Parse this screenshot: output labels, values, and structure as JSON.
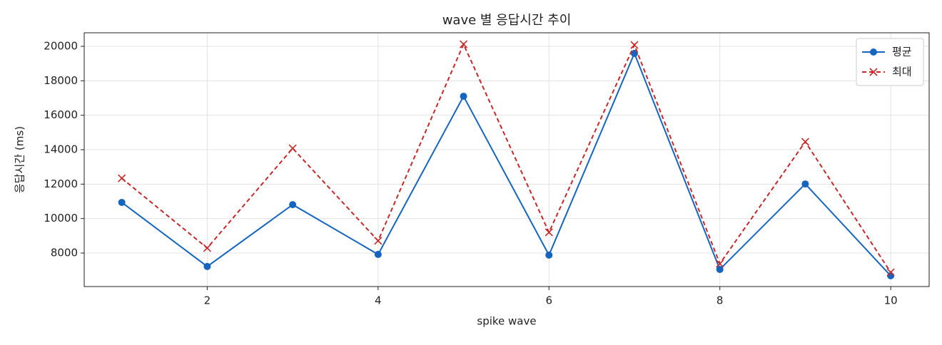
{
  "chart_data": {
    "type": "line",
    "title": "wave 별 응답시간 추이",
    "x_label": "spike wave",
    "y_label": "응답시간 (ms)",
    "x": [
      1,
      2,
      3,
      4,
      5,
      6,
      7,
      8,
      9,
      10
    ],
    "series": [
      {
        "name": "평균",
        "color": "#1565c0",
        "marker": "circle",
        "dashed": false,
        "values": [
          10940,
          7220,
          10810,
          7920,
          17100,
          7880,
          19590,
          7050,
          12010,
          6680
        ]
      },
      {
        "name": "최대",
        "color": "#c62828",
        "marker": "x",
        "dashed": true,
        "values": [
          12340,
          8290,
          14080,
          8710,
          20120,
          9200,
          20080,
          7380,
          14460,
          6880
        ]
      }
    ],
    "xlim": [
      0.56,
      10.45
    ],
    "ylim": [
      6055,
      20786
    ],
    "xticks": [
      2,
      4,
      6,
      8,
      10
    ],
    "yticks": [
      8000,
      10000,
      12000,
      14000,
      16000,
      18000,
      20000
    ],
    "grid": true,
    "legend": "upper right"
  }
}
